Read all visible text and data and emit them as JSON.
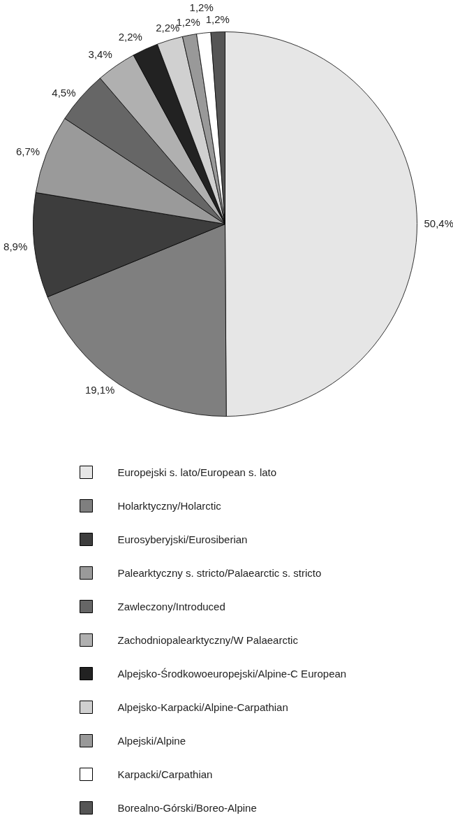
{
  "chart_data": {
    "type": "pie",
    "categories": [
      "Europejski s. lato/European s. lato",
      "Holarktyczny/Holarctic",
      "Eurosyberyjski/Eurosiberian",
      "Palearktyczny s. stricto/Palaearctic s. stricto",
      "Zawleczony/Introduced",
      "Zachodniopalearktyczny/W Palaearctic",
      "Alpejsko-Środkowoeuropejski/Alpine-C European",
      "Alpejsko-Karpacki/Alpine-Carpathian",
      "Alpejski/Alpine",
      "Karpacki/Carpathian",
      "Borealno-Górski/Boreo-Alpine"
    ],
    "values": [
      50.4,
      19.1,
      8.9,
      6.7,
      4.5,
      3.4,
      2.2,
      2.2,
      1.2,
      1.2,
      1.2
    ],
    "value_labels": [
      "50,4%",
      "19,1%",
      "8,9%",
      "6,7%",
      "4,5%",
      "3,4%",
      "2,2%",
      "2,2%",
      "1,2%",
      "1,2%",
      "1,2%"
    ],
    "colors": [
      "#e6e6e6",
      "#7f7f7f",
      "#3d3d3d",
      "#9a9a9a",
      "#666666",
      "#b0b0b0",
      "#222222",
      "#d0d0d0",
      "#999999",
      "#ffffff",
      "#555555"
    ],
    "legend": "bottom"
  }
}
